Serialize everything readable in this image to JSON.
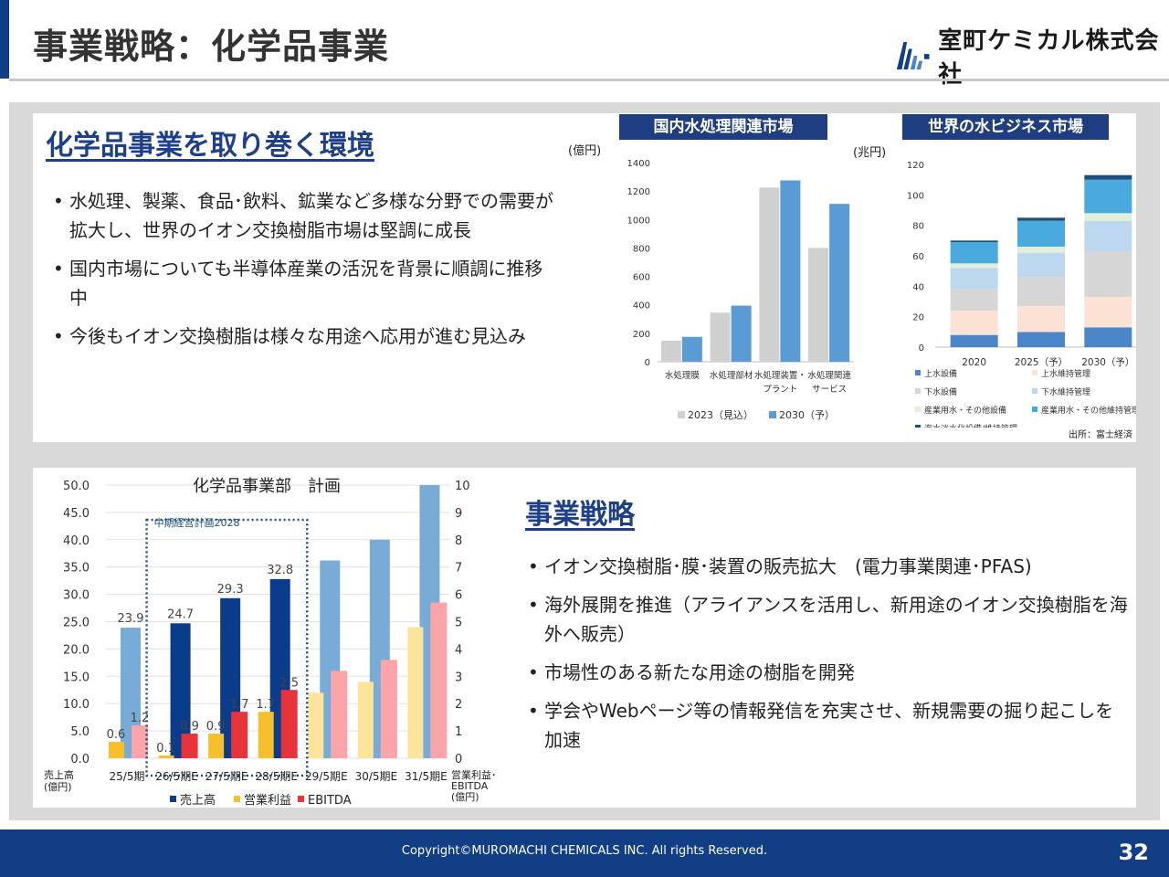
{
  "header": {
    "title": "事業戦略：化学品事業",
    "company_name": "室町ケミカル株式会社",
    "brand_color": "#123e86"
  },
  "environment": {
    "heading": "化学品事業を取り巻く環境",
    "bullets": [
      "水処理、製薬、食品･飲料、鉱業など多様な分野での需要が拡大し、世界のイオン交換樹脂市場は堅調に成長",
      "国内市場についても半導体産業の活況を背景に順調に推移中",
      "今後もイオン交換樹脂は様々な用途へ応用が進む見込み"
    ]
  },
  "strategy": {
    "heading": "事業戦略",
    "bullets": [
      "イオン交換樹脂･膜･装置の販売拡大　(電力事業関連･PFAS)",
      "海外展開を推進（アライアンスを活用し、新用途のイオン交換樹脂を海外へ販売）",
      "市場性のある新たな用途の樹脂を開発",
      "学会やWebページ等の情報発信を充実させ、新規需要の掘り起こしを加速"
    ]
  },
  "source_note": "出所：富士経済",
  "footer": {
    "copyright": "Copyright©MUROMACHI CHEMICALS INC. All rights Reserved.",
    "page_number": "32"
  },
  "chart_data": [
    {
      "id": "domestic",
      "type": "bar",
      "title": "国内水処理関連市場",
      "ylabel": "(億円)",
      "ylim": [
        0,
        1400
      ],
      "yticks": [
        0,
        200,
        400,
        600,
        800,
        1000,
        1200,
        1400
      ],
      "categories": [
        [
          "水処理膜"
        ],
        [
          "水処理部材"
        ],
        [
          "水処理装置・",
          "プラント"
        ],
        [
          "水処理関連",
          "サービス"
        ]
      ],
      "series": [
        {
          "name": "2023（見込）",
          "color": "#d0d0d0",
          "values": [
            148,
            345,
            1225,
            800
          ]
        },
        {
          "name": "2030（予）",
          "color": "#5b9bd5",
          "values": [
            175,
            395,
            1275,
            1110
          ]
        }
      ],
      "legend_position": "bottom",
      "grid": false
    },
    {
      "id": "global",
      "type": "bar",
      "stacked": true,
      "title": "世界の水ビジネス市場",
      "ylabel": "(兆円)",
      "ylim": [
        0,
        120
      ],
      "yticks": [
        0,
        20,
        40,
        60,
        80,
        100,
        120
      ],
      "categories": [
        "2020",
        "2025（予）",
        "2030（予）"
      ],
      "series": [
        {
          "name": "上水設備",
          "color": "#4a86c8",
          "values": [
            8,
            10,
            13
          ]
        },
        {
          "name": "上水維持管理",
          "color": "#fbe2d4",
          "values": [
            16,
            17,
            20
          ]
        },
        {
          "name": "下水設備",
          "color": "#d6d6d6",
          "values": [
            14,
            19,
            30
          ]
        },
        {
          "name": "下水維持管理",
          "color": "#bdd7ee",
          "values": [
            14,
            16,
            20
          ]
        },
        {
          "name": "産業用水・その他設備",
          "color": "#e2efda",
          "values": [
            3,
            4,
            5
          ]
        },
        {
          "name": "産業用水・その他維持管理",
          "color": "#4aa9dd",
          "values": [
            14,
            17,
            22
          ]
        },
        {
          "name": "海水淡水化設備/維持管理",
          "color": "#1f4e79",
          "values": [
            1,
            2,
            3
          ]
        }
      ],
      "legend_position": "bottom",
      "grid": false
    },
    {
      "id": "plan",
      "type": "bar",
      "title": "化学品事業部　計画",
      "categories": [
        "25/5期",
        "26/5期E",
        "27/5期E",
        "28/5期E",
        "29/5期E",
        "30/5期E",
        "31/5期E"
      ],
      "left_axis": {
        "ylim": [
          0,
          50
        ],
        "ticks": [
          "0.0",
          "5.0",
          "10.0",
          "15.0",
          "20.0",
          "25.0",
          "30.0",
          "35.0",
          "40.0",
          "45.0",
          "50.0"
        ],
        "label_lines": [
          "売上高",
          "(億円)"
        ]
      },
      "right_axis": {
        "ylim": [
          0,
          10
        ],
        "ticks": [
          "0",
          "1",
          "2",
          "3",
          "4",
          "5",
          "6",
          "7",
          "8",
          "9",
          "10"
        ],
        "label_lines": [
          "営業利益･",
          "EBITDA",
          "(億円)"
        ]
      },
      "series": [
        {
          "name": "売上高",
          "axis": "left",
          "color": "#0b3c8c",
          "values": [
            23.9,
            24.7,
            29.3,
            32.8,
            36.2,
            40.0,
            50.0
          ],
          "labels": [
            "23.9",
            "24.7",
            "29.3",
            "32.8",
            "",
            "",
            ""
          ]
        },
        {
          "name": "営業利益",
          "axis": "right",
          "color": "#f6c02c",
          "values": [
            0.6,
            0.1,
            0.9,
            1.7,
            2.4,
            2.8,
            4.8
          ],
          "labels": [
            "0.6",
            "0.1",
            "0.9",
            "1.7",
            "",
            "",
            ""
          ]
        },
        {
          "name": "EBITDA",
          "axis": "right",
          "color": "#e8333b",
          "values": [
            1.2,
            0.9,
            1.7,
            2.5,
            3.2,
            3.6,
            5.7
          ],
          "labels": [
            "1.2",
            "0.9",
            "1.7",
            "2.5",
            "",
            "",
            ""
          ]
        }
      ],
      "plan_box": {
        "label": "中期経営計画2028",
        "from_index": 1,
        "to_index": 3
      },
      "legend_position": "bottom",
      "grid": true
    }
  ]
}
